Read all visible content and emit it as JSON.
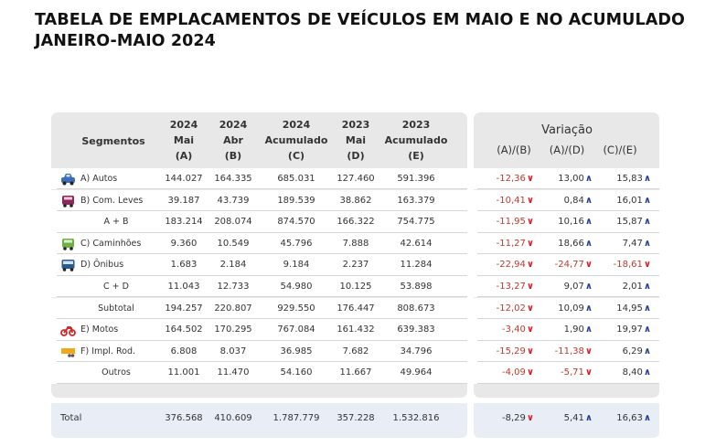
{
  "title": "TABELA DE EMPLACAMENTOS DE VEÍCULOS EM MAIO E NO ACUMULADO JANEIRO-MAIO 2024",
  "headers": {
    "segmentos": "Segmentos",
    "cols": [
      [
        "2024",
        "Mai",
        "(A)"
      ],
      [
        "2024",
        "Abr",
        "(B)"
      ],
      [
        "2024",
        "Acumulado",
        "(C)"
      ],
      [
        "2023",
        "Mai",
        "(D)"
      ],
      [
        "2023",
        "Acumulado",
        "(E)"
      ]
    ],
    "variacao": "Variação",
    "var_cols": [
      "(A)/(B)",
      "(A)/(D)",
      "(C)/(E)"
    ]
  },
  "rows": [
    {
      "label": "A) Autos",
      "icon": "car-icon",
      "color": "#3a6fb5",
      "values": [
        "144.027",
        "164.335",
        "685.031",
        "127.460",
        "591.396"
      ],
      "var": [
        [
          "-12,36",
          "down"
        ],
        [
          "13,00",
          "up"
        ],
        [
          "15,83",
          "up"
        ]
      ]
    },
    {
      "label": "B) Com. Leves",
      "icon": "van-icon",
      "color": "#8b2a5a",
      "values": [
        "39.187",
        "43.739",
        "189.539",
        "38.862",
        "163.379"
      ],
      "var": [
        [
          "-10,41",
          "down"
        ],
        [
          "0,84",
          "up"
        ],
        [
          "16,01",
          "up"
        ]
      ]
    },
    {
      "label": "A + B",
      "icon": "",
      "values": [
        "183.214",
        "208.074",
        "874.570",
        "166.322",
        "754.775"
      ],
      "var": [
        [
          "-11,95",
          "down"
        ],
        [
          "10,16",
          "up"
        ],
        [
          "15,87",
          "up"
        ]
      ]
    },
    {
      "label": "C) Caminhões",
      "icon": "truck-icon",
      "color": "#6fb046",
      "values": [
        "9.360",
        "10.549",
        "45.796",
        "7.888",
        "42.614"
      ],
      "var": [
        [
          "-11,27",
          "down"
        ],
        [
          "18,66",
          "up"
        ],
        [
          "7,47",
          "up"
        ]
      ]
    },
    {
      "label": "D) Ônibus",
      "icon": "bus-icon",
      "color": "#2a5a8e",
      "values": [
        "1.683",
        "2.184",
        "9.184",
        "2.237",
        "11.284"
      ],
      "var": [
        [
          "-22,94",
          "down"
        ],
        [
          "-24,77",
          "down"
        ],
        [
          "-18,61",
          "down"
        ]
      ]
    },
    {
      "label": "C + D",
      "icon": "",
      "values": [
        "11.043",
        "12.733",
        "54.980",
        "10.125",
        "53.898"
      ],
      "var": [
        [
          "-13,27",
          "down"
        ],
        [
          "9,07",
          "up"
        ],
        [
          "2,01",
          "up"
        ]
      ]
    },
    {
      "label": "Subtotal",
      "icon": "",
      "values": [
        "194.257",
        "220.807",
        "929.550",
        "176.447",
        "808.673"
      ],
      "var": [
        [
          "-12,02",
          "down"
        ],
        [
          "10,09",
          "up"
        ],
        [
          "14,95",
          "up"
        ]
      ]
    },
    {
      "label": "E) Motos",
      "icon": "motorcycle-icon",
      "color": "#d02a2a",
      "values": [
        "164.502",
        "170.295",
        "767.084",
        "161.432",
        "639.383"
      ],
      "var": [
        [
          "-3,40",
          "down"
        ],
        [
          "1,90",
          "up"
        ],
        [
          "19,97",
          "up"
        ]
      ]
    },
    {
      "label": "F) Impl. Rod.",
      "icon": "trailer-icon",
      "color": "#f0a818",
      "values": [
        "6.808",
        "8.037",
        "36.985",
        "7.682",
        "34.796"
      ],
      "var": [
        [
          "-15,29",
          "down"
        ],
        [
          "-11,38",
          "down"
        ],
        [
          "6,29",
          "up"
        ]
      ]
    },
    {
      "label": "Outros",
      "icon": "",
      "values": [
        "11.001",
        "11.470",
        "54.160",
        "11.667",
        "49.964"
      ],
      "var": [
        [
          "-4,09",
          "down"
        ],
        [
          "-5,71",
          "down"
        ],
        [
          "8,40",
          "up"
        ]
      ]
    }
  ],
  "total": {
    "label": "Total",
    "values": [
      "376.568",
      "410.609",
      "1.787.779",
      "357.228",
      "1.532.816"
    ],
    "var": [
      [
        "-8,29",
        "down"
      ],
      [
        "5,41",
        "up"
      ],
      [
        "16,63",
        "up"
      ]
    ]
  }
}
